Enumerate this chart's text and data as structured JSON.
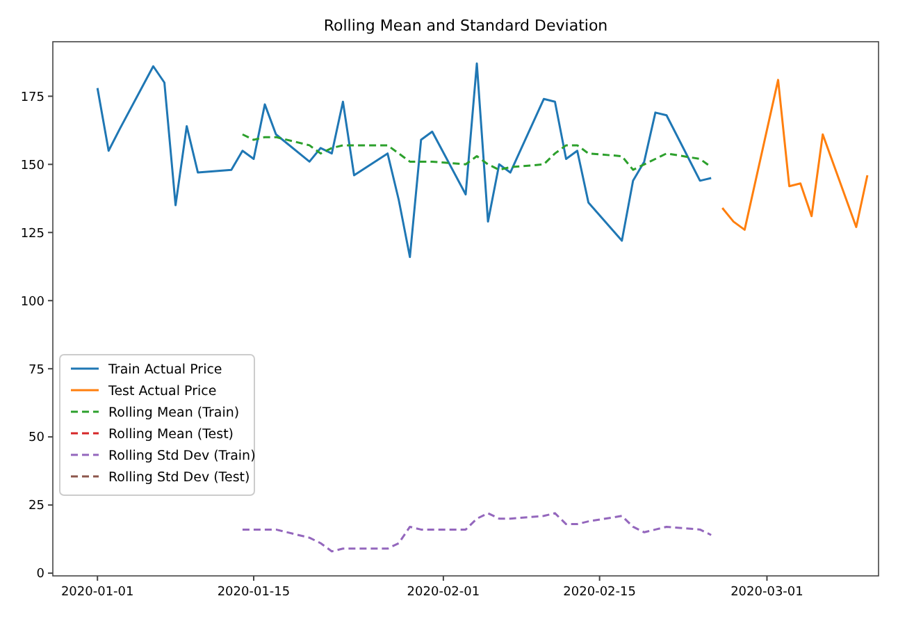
{
  "chart_data": {
    "type": "line",
    "title": "Rolling Mean and Standard Deviation",
    "xlim": [
      "2019-12-28",
      "2020-03-11"
    ],
    "ylim": [
      -1,
      195
    ],
    "xticks": [
      "2020-01-01",
      "2020-01-15",
      "2020-02-01",
      "2020-02-15",
      "2020-03-01"
    ],
    "yticks": [
      0,
      25,
      50,
      75,
      100,
      125,
      150,
      175
    ],
    "grid": false,
    "legend": "bottom left",
    "series": [
      {
        "name": "Train Actual Price",
        "color": "#1f77b4",
        "line_style": "solid",
        "x": [
          "2020-01-01",
          "2020-01-02",
          "2020-01-03",
          "2020-01-06",
          "2020-01-07",
          "2020-01-08",
          "2020-01-09",
          "2020-01-10",
          "2020-01-13",
          "2020-01-14",
          "2020-01-15",
          "2020-01-16",
          "2020-01-17",
          "2020-01-20",
          "2020-01-21",
          "2020-01-22",
          "2020-01-23",
          "2020-01-24",
          "2020-01-27",
          "2020-01-28",
          "2020-01-29",
          "2020-01-30",
          "2020-01-31",
          "2020-02-03",
          "2020-02-04",
          "2020-02-05",
          "2020-02-06",
          "2020-02-07",
          "2020-02-10",
          "2020-02-11",
          "2020-02-12",
          "2020-02-13",
          "2020-02-14",
          "2020-02-17",
          "2020-02-18",
          "2020-02-19",
          "2020-02-20",
          "2020-02-21",
          "2020-02-24",
          "2020-02-25"
        ],
        "values": [
          178,
          155,
          163,
          186,
          180,
          135,
          164,
          147,
          148,
          155,
          152,
          172,
          161,
          151,
          156,
          154,
          173,
          146,
          154,
          137,
          116,
          159,
          162,
          139,
          187,
          129,
          150,
          147,
          174,
          173,
          152,
          155,
          136,
          122,
          144,
          151,
          169,
          168,
          144,
          145
        ]
      },
      {
        "name": "Test Actual Price",
        "color": "#ff7f0e",
        "line_style": "solid",
        "x": [
          "2020-02-26",
          "2020-02-27",
          "2020-02-28",
          "2020-03-02",
          "2020-03-03",
          "2020-03-04",
          "2020-03-05",
          "2020-03-06",
          "2020-03-09",
          "2020-03-10"
        ],
        "values": [
          134,
          129,
          126,
          181,
          142,
          143,
          131,
          161,
          127,
          146
        ]
      },
      {
        "name": "Rolling Mean (Train)",
        "color": "#2ca02c",
        "line_style": "dashed",
        "x": [
          "2020-01-14",
          "2020-01-15",
          "2020-01-16",
          "2020-01-17",
          "2020-01-20",
          "2020-01-21",
          "2020-01-22",
          "2020-01-23",
          "2020-01-24",
          "2020-01-27",
          "2020-01-28",
          "2020-01-29",
          "2020-01-30",
          "2020-01-31",
          "2020-02-03",
          "2020-02-04",
          "2020-02-05",
          "2020-02-06",
          "2020-02-07",
          "2020-02-10",
          "2020-02-11",
          "2020-02-12",
          "2020-02-13",
          "2020-02-14",
          "2020-02-17",
          "2020-02-18",
          "2020-02-19",
          "2020-02-20",
          "2020-02-21",
          "2020-02-24",
          "2020-02-25"
        ],
        "values": [
          161,
          159,
          160,
          160,
          157,
          154,
          156,
          157,
          157,
          157,
          154,
          151,
          151,
          151,
          150,
          153,
          150,
          148,
          149,
          150,
          154,
          157,
          157,
          154,
          153,
          148,
          150,
          152,
          154,
          152,
          149
        ]
      },
      {
        "name": "Rolling Mean (Test)",
        "color": "#d62728",
        "line_style": "dashed"
      },
      {
        "name": "Rolling Std Dev (Train)",
        "color": "#9467bd",
        "line_style": "dashed",
        "x": [
          "2020-01-14",
          "2020-01-15",
          "2020-01-16",
          "2020-01-17",
          "2020-01-20",
          "2020-01-21",
          "2020-01-22",
          "2020-01-23",
          "2020-01-24",
          "2020-01-27",
          "2020-01-28",
          "2020-01-29",
          "2020-01-30",
          "2020-01-31",
          "2020-02-03",
          "2020-02-04",
          "2020-02-05",
          "2020-02-06",
          "2020-02-07",
          "2020-02-10",
          "2020-02-11",
          "2020-02-12",
          "2020-02-13",
          "2020-02-14",
          "2020-02-17",
          "2020-02-18",
          "2020-02-19",
          "2020-02-20",
          "2020-02-21",
          "2020-02-24",
          "2020-02-25"
        ],
        "values": [
          16,
          16,
          16,
          16,
          13,
          11,
          8,
          9,
          9,
          9,
          11,
          17,
          16,
          16,
          16,
          20,
          22,
          20,
          20,
          21,
          22,
          18,
          18,
          19,
          21,
          17,
          15,
          16,
          17,
          16,
          14
        ]
      },
      {
        "name": "Rolling Std Dev (Test)",
        "color": "#8c564b",
        "line_style": "dashed"
      }
    ]
  }
}
